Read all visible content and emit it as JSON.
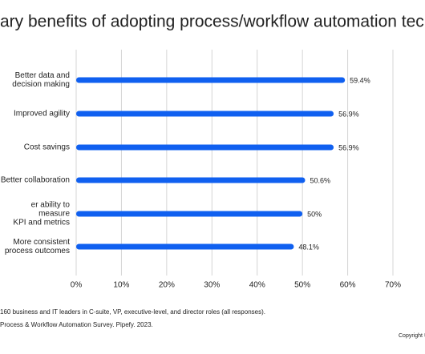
{
  "chart_data": {
    "type": "barh",
    "title": "ary benefits of adopting process/workflow automation technolo",
    "categories": [
      "Better data and\ndecision making",
      "Improved agility",
      "Cost savings",
      "Better collaboration",
      "er ability to measure\nKPI and metrics",
      "More consistent\nprocess outcomes"
    ],
    "values": [
      59.4,
      56.9,
      56.9,
      50.6,
      50,
      48.1
    ],
    "value_labels": [
      "59.4%",
      "56.9%",
      "56.9%",
      "50.6%",
      "50%",
      "48.1%"
    ],
    "color": "#1060f0",
    "xlim": [
      0,
      70
    ],
    "xticks": [
      {
        "value": 0,
        "label": "0%"
      },
      {
        "value": 10,
        "label": "10%"
      },
      {
        "value": 20,
        "label": "20%"
      },
      {
        "value": 30,
        "label": "30%"
      },
      {
        "value": 40,
        "label": "40%"
      },
      {
        "value": 50,
        "label": "50%"
      },
      {
        "value": 60,
        "label": "60%"
      },
      {
        "value": 70,
        "label": "70%"
      }
    ],
    "grid": true,
    "notes": [
      "160 business and IT leaders in C-suite, VP, executive-level, and director roles (all responses).",
      "Process & Workflow Automation Survey. Pipefy. 2023."
    ],
    "copyright": "Copyright ©"
  }
}
